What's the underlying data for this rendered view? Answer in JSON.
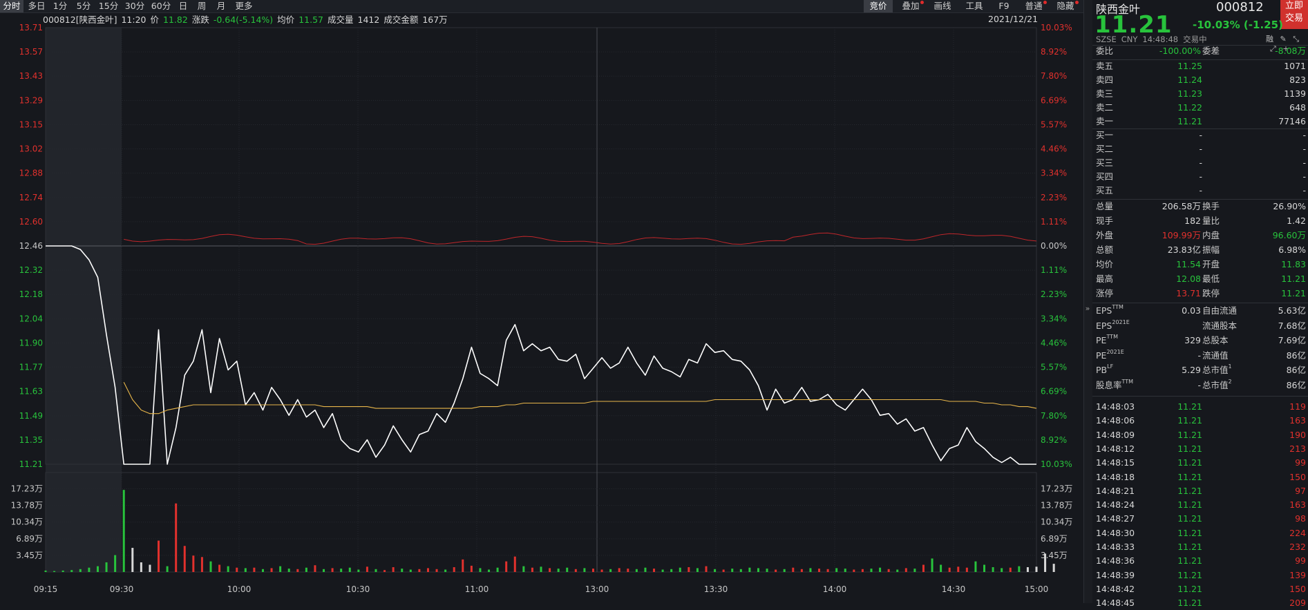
{
  "toolbar": {
    "left_tabs": [
      "分时",
      "多日",
      "1分",
      "5分",
      "15分",
      "30分",
      "60分",
      "日",
      "周",
      "月",
      "更多"
    ],
    "right_tabs": [
      "竞价",
      "叠加",
      "画线",
      "工具",
      "F9",
      "普通",
      "隐藏"
    ]
  },
  "info_bar": {
    "name": "000812[陕西金叶]",
    "time": "11:20",
    "price_label": "价",
    "price": "11.82",
    "change_label": "涨跌",
    "change": "-0.64(-5.14%)",
    "avg_label": "均价",
    "avg": "11.57",
    "volume_label": "成交量",
    "volume": "1412",
    "amount_label": "成交金额",
    "amount": "167万",
    "date": "2021/12/21"
  },
  "chart_data": {
    "type": "line",
    "title": "",
    "x_ticks": [
      "09:15",
      "09:30",
      "10:00",
      "10:30",
      "11:00",
      "13:00",
      "13:30",
      "14:00",
      "14:30",
      "15:00"
    ],
    "price_ticks": [
      "13.71",
      "13.57",
      "13.43",
      "13.29",
      "13.15",
      "13.02",
      "12.88",
      "12.74",
      "12.60",
      "12.46",
      "12.32",
      "12.18",
      "12.04",
      "11.90",
      "11.77",
      "11.63",
      "11.49",
      "11.35",
      "11.21"
    ],
    "pct_ticks": [
      "10.03%",
      "8.92%",
      "7.80%",
      "6.69%",
      "5.57%",
      "4.46%",
      "3.34%",
      "2.23%",
      "1.11%",
      "0.00%",
      "1.11%",
      "2.23%",
      "3.34%",
      "4.46%",
      "5.57%",
      "6.69%",
      "7.80%",
      "8.92%",
      "10.03%"
    ],
    "volume_ticks": [
      "17.23万",
      "13.78万",
      "10.34万",
      "6.89万",
      "3.45万"
    ],
    "prev_close": 12.46,
    "ylim": [
      11.21,
      13.71
    ],
    "series": [
      {
        "name": "",
        "color": "#ffffff",
        "values": [
          12.46,
          12.46,
          12.46,
          12.46,
          12.44,
          12.38,
          12.28,
          11.95,
          11.65,
          11.21,
          11.21,
          11.21,
          11.21,
          11.98,
          11.21,
          11.42,
          11.72,
          11.8,
          11.98,
          11.62,
          11.93,
          11.75,
          11.8,
          11.55,
          11.62,
          11.52,
          11.65,
          11.58,
          11.49,
          11.58,
          11.48,
          11.52,
          11.42,
          11.5,
          11.35,
          11.3,
          11.28,
          11.35,
          11.25,
          11.32,
          11.43,
          11.35,
          11.28,
          11.38,
          11.4,
          11.5,
          11.45,
          11.56,
          11.7,
          11.88,
          11.73,
          11.7,
          11.66,
          11.92,
          12.01,
          11.86,
          11.9,
          11.86,
          11.88,
          11.81,
          11.8,
          11.84,
          11.7,
          11.76,
          11.82,
          11.76,
          11.79,
          11.88,
          11.79,
          11.72,
          11.83,
          11.76,
          11.74,
          11.71,
          11.81,
          11.79,
          11.9,
          11.85,
          11.86,
          11.81,
          11.8,
          11.75,
          11.66,
          11.52,
          11.64,
          11.56,
          11.58,
          11.65,
          11.57,
          11.58,
          11.61,
          11.55,
          11.52,
          11.58,
          11.64,
          11.58,
          11.49,
          11.5,
          11.44,
          11.47,
          11.4,
          11.42,
          11.32,
          11.23,
          11.3,
          11.32,
          11.42,
          11.34,
          11.3,
          11.25,
          11.22,
          11.25,
          11.21,
          11.21,
          11.21
        ]
      },
      {
        "name": "",
        "color": "#e8b64a",
        "values": [
          null,
          null,
          null,
          null,
          null,
          null,
          null,
          null,
          null,
          11.68,
          11.58,
          11.52,
          11.5,
          11.5,
          11.52,
          11.53,
          11.54,
          11.55,
          11.55,
          11.55,
          11.55,
          11.55,
          11.55,
          11.55,
          11.55,
          11.55,
          11.55,
          11.55,
          11.55,
          11.55,
          11.55,
          11.55,
          11.54,
          11.54,
          11.54,
          11.54,
          11.54,
          11.54,
          11.53,
          11.53,
          11.53,
          11.53,
          11.53,
          11.53,
          11.53,
          11.53,
          11.53,
          11.53,
          11.53,
          11.53,
          11.54,
          11.54,
          11.54,
          11.55,
          11.55,
          11.56,
          11.56,
          11.56,
          11.56,
          11.56,
          11.56,
          11.56,
          11.56,
          11.57,
          11.57,
          11.57,
          11.57,
          11.57,
          11.57,
          11.57,
          11.57,
          11.57,
          11.57,
          11.57,
          11.57,
          11.57,
          11.57,
          11.58,
          11.58,
          11.58,
          11.58,
          11.58,
          11.58,
          11.58,
          11.58,
          11.58,
          11.58,
          11.58,
          11.58,
          11.58,
          11.58,
          11.58,
          11.58,
          11.58,
          11.58,
          11.58,
          11.58,
          11.58,
          11.58,
          11.58,
          11.58,
          11.58,
          11.58,
          11.58,
          11.57,
          11.57,
          11.57,
          11.57,
          11.56,
          11.56,
          11.55,
          11.55,
          11.54,
          11.54,
          11.53
        ]
      }
    ],
    "volume_bars_wan": [
      0.3,
      0.2,
      0.3,
      0.4,
      0.6,
      0.9,
      1.2,
      2.0,
      3.5,
      17.0,
      5.0,
      2.0,
      1.5,
      6.5,
      1.2,
      14.2,
      5.4,
      3.4,
      3.1,
      2.2,
      1.5,
      1.2,
      0.9,
      0.8,
      0.9,
      0.6,
      0.8,
      1.2,
      0.7,
      0.6,
      0.9,
      1.4,
      0.6,
      0.8,
      0.7,
      0.9,
      0.5,
      1.1,
      0.6,
      0.4,
      1.0,
      0.7,
      0.5,
      0.6,
      0.8,
      0.6,
      0.5,
      1.0,
      2.6,
      1.3,
      0.8,
      0.5,
      0.9,
      2.2,
      3.2,
      1.2,
      0.9,
      1.1,
      0.8,
      0.7,
      0.9,
      0.6,
      0.8,
      0.7,
      0.5,
      0.6,
      0.8,
      0.7,
      0.6,
      0.9,
      0.7,
      0.5,
      0.6,
      0.9,
      1.0,
      0.8,
      1.2,
      0.6,
      0.5,
      0.7,
      0.6,
      0.9,
      0.8,
      0.7,
      0.5,
      0.6,
      0.9,
      0.6,
      0.8,
      0.7,
      0.6,
      0.8,
      0.7,
      0.5,
      0.6,
      0.7,
      0.9,
      0.6,
      0.5,
      0.8,
      0.7,
      1.5,
      2.8,
      1.5,
      0.9,
      1.1,
      0.9,
      2.2,
      1.5,
      1.0,
      0.8,
      0.9,
      1.2,
      1.0,
      1.1,
      3.8,
      1.7
    ]
  },
  "panel": {
    "name": "陕西金叶",
    "code": "000812",
    "trade_button": [
      "立即",
      "交易"
    ],
    "price": "11.21",
    "change": "-10.03% (-1.25)",
    "exchange": "SZSE",
    "currency": "CNY",
    "time": "14:48:48",
    "status": "交易中",
    "weibi_label": "委比",
    "weibi": "-100.00%",
    "weicha_label": "委差",
    "weicha": "-8.08万",
    "sells": [
      {
        "label": "卖五",
        "price": "11.25",
        "vol": "1071"
      },
      {
        "label": "卖四",
        "price": "11.24",
        "vol": "823"
      },
      {
        "label": "卖三",
        "price": "11.23",
        "vol": "1139"
      },
      {
        "label": "卖二",
        "price": "11.22",
        "vol": "648"
      },
      {
        "label": "卖一",
        "price": "11.21",
        "vol": "77146"
      }
    ],
    "buys": [
      {
        "label": "买一",
        "price": "-",
        "vol": "-"
      },
      {
        "label": "买二",
        "price": "-",
        "vol": "-"
      },
      {
        "label": "买三",
        "price": "-",
        "vol": "-"
      },
      {
        "label": "买四",
        "price": "-",
        "vol": "-"
      },
      {
        "label": "买五",
        "price": "-",
        "vol": "-"
      }
    ],
    "stats": [
      {
        "l1": "总量",
        "v1": "206.58万",
        "c1": "w",
        "l2": "换手",
        "v2": "26.90%",
        "c2": "w"
      },
      {
        "l1": "现手",
        "v1": "182",
        "c1": "w",
        "l2": "量比",
        "v2": "1.42",
        "c2": "w"
      },
      {
        "l1": "外盘",
        "v1": "109.99万",
        "c1": "r",
        "l2": "内盘",
        "v2": "96.60万",
        "c2": "g"
      },
      {
        "l1": "总额",
        "v1": "23.83亿",
        "c1": "w",
        "l2": "振幅",
        "v2": "6.98%",
        "c2": "w"
      },
      {
        "l1": "均价",
        "v1": "11.54",
        "c1": "g",
        "l2": "开盘",
        "v2": "11.83",
        "c2": "g"
      },
      {
        "l1": "最高",
        "v1": "12.08",
        "c1": "g",
        "l2": "最低",
        "v2": "11.21",
        "c2": "g"
      },
      {
        "l1": "涨停",
        "v1": "13.71",
        "c1": "r",
        "l2": "跌停",
        "v2": "11.21",
        "c2": "g"
      }
    ],
    "fundamentals": [
      {
        "l1": "EPS",
        "s1": "TTM",
        "v1": "0.03",
        "l2": "自由流通",
        "s2": "",
        "v2": "5.63亿"
      },
      {
        "l1": "EPS",
        "s1": "2021E",
        "v1": "",
        "l2": "流通股本",
        "s2": "",
        "v2": "7.68亿"
      },
      {
        "l1": "PE",
        "s1": "TTM",
        "v1": "329",
        "l2": "总股本",
        "s2": "",
        "v2": "7.69亿"
      },
      {
        "l1": "PE",
        "s1": "2021E",
        "v1": "-",
        "l2": "流通值",
        "s2": "",
        "v2": "86亿"
      },
      {
        "l1": "PB",
        "s1": "LF",
        "v1": "5.29",
        "l2": "总市值",
        "s2": "1",
        "v2": "86亿"
      },
      {
        "l1": "股息率",
        "s1": "TTM",
        "v1": "-",
        "l2": "总市值",
        "s2": "2",
        "v2": "86亿"
      }
    ],
    "ticks": [
      {
        "t": "14:48:03",
        "p": "11.21",
        "v": "119"
      },
      {
        "t": "14:48:06",
        "p": "11.21",
        "v": "163"
      },
      {
        "t": "14:48:09",
        "p": "11.21",
        "v": "190"
      },
      {
        "t": "14:48:12",
        "p": "11.21",
        "v": "213"
      },
      {
        "t": "14:48:15",
        "p": "11.21",
        "v": "99"
      },
      {
        "t": "14:48:18",
        "p": "11.21",
        "v": "150"
      },
      {
        "t": "14:48:21",
        "p": "11.21",
        "v": "97"
      },
      {
        "t": "14:48:24",
        "p": "11.21",
        "v": "163"
      },
      {
        "t": "14:48:27",
        "p": "11.21",
        "v": "98"
      },
      {
        "t": "14:48:30",
        "p": "11.21",
        "v": "224"
      },
      {
        "t": "14:48:33",
        "p": "11.21",
        "v": "232"
      },
      {
        "t": "14:48:36",
        "p": "11.21",
        "v": "99"
      },
      {
        "t": "14:48:39",
        "p": "11.21",
        "v": "139"
      },
      {
        "t": "14:48:42",
        "p": "11.21",
        "v": "150"
      },
      {
        "t": "14:48:45",
        "p": "11.21",
        "v": "209"
      }
    ]
  }
}
